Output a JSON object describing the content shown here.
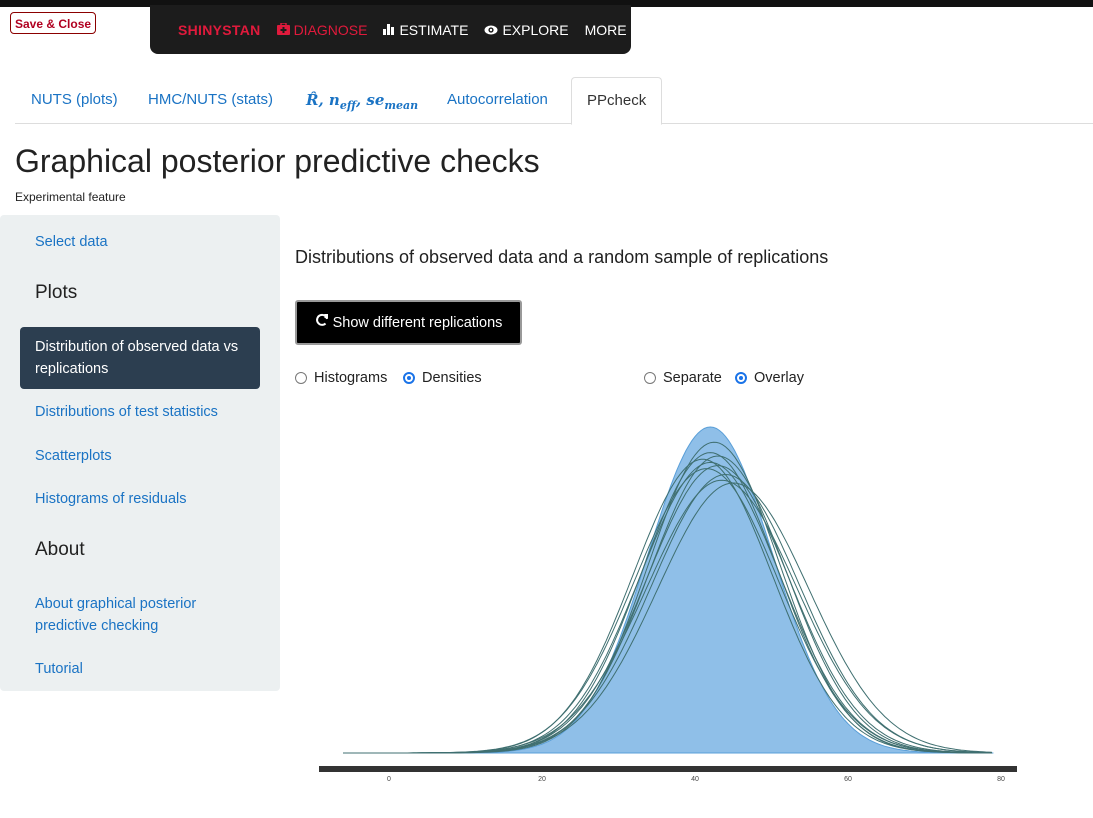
{
  "header": {
    "save_close": "Save & Close",
    "nav": {
      "brand": "SHINYSTAN",
      "diagnose": "DIAGNOSE",
      "estimate": "ESTIMATE",
      "explore": "EXPLORE",
      "more": "MORE"
    }
  },
  "tabs": [
    {
      "label": "NUTS (plots)"
    },
    {
      "label": "HMC/NUTS (stats)"
    },
    {
      "label_math": "R̂, n",
      "sub1": "eff",
      "mid": ", se",
      "sub2": "mean"
    },
    {
      "label": "Autocorrelation"
    },
    {
      "label": "PPcheck",
      "active": true
    }
  ],
  "page": {
    "title": "Graphical posterior predictive checks",
    "subtitle": "Experimental feature"
  },
  "sidebar": {
    "select_data": "Select data",
    "plots_heading": "Plots",
    "items": [
      {
        "label": "Distribution of observed data vs replications",
        "active": true
      },
      {
        "label": "Distributions of test statistics"
      },
      {
        "label": "Scatterplots"
      },
      {
        "label": "Histograms of residuals"
      }
    ],
    "about_heading": "About",
    "about_items": [
      {
        "label": "About graphical posterior predictive checking"
      },
      {
        "label": "Tutorial"
      }
    ]
  },
  "main": {
    "title": "Distributions of observed data and a random sample of replications",
    "refresh_button": "Show different replications",
    "plot_type": {
      "options": [
        "Histograms",
        "Densities"
      ],
      "selected": "Densities"
    },
    "layout": {
      "options": [
        "Separate",
        "Overlay"
      ],
      "selected": "Overlay"
    }
  },
  "colors": {
    "accent": "#1a73c4",
    "brand_red": "#e01a3c",
    "sidebar_bg": "#ecf0f1",
    "sidebar_active": "#2c3e50",
    "observed_fill": "#8fbfe8",
    "observed_stroke": "#5a9fd8",
    "replication_line": "#3f6f70"
  },
  "chart_data": {
    "type": "area",
    "xlim": [
      -6,
      79
    ],
    "x_ticks": [
      0,
      20,
      40,
      60,
      80
    ],
    "observed": {
      "mean": 42,
      "sd": 8.2
    },
    "replications": [
      {
        "mean": 42,
        "sd": 9.2
      },
      {
        "mean": 43,
        "sd": 9.0
      },
      {
        "mean": 44,
        "sd": 9.6
      },
      {
        "mean": 41,
        "sd": 9.1
      },
      {
        "mean": 42.5,
        "sd": 8.6
      },
      {
        "mean": 43.5,
        "sd": 9.8
      },
      {
        "mean": 42,
        "sd": 8.9
      },
      {
        "mean": 41.5,
        "sd": 9.4
      },
      {
        "mean": 45,
        "sd": 9.9
      },
      {
        "mean": 43,
        "sd": 9.3
      }
    ]
  }
}
